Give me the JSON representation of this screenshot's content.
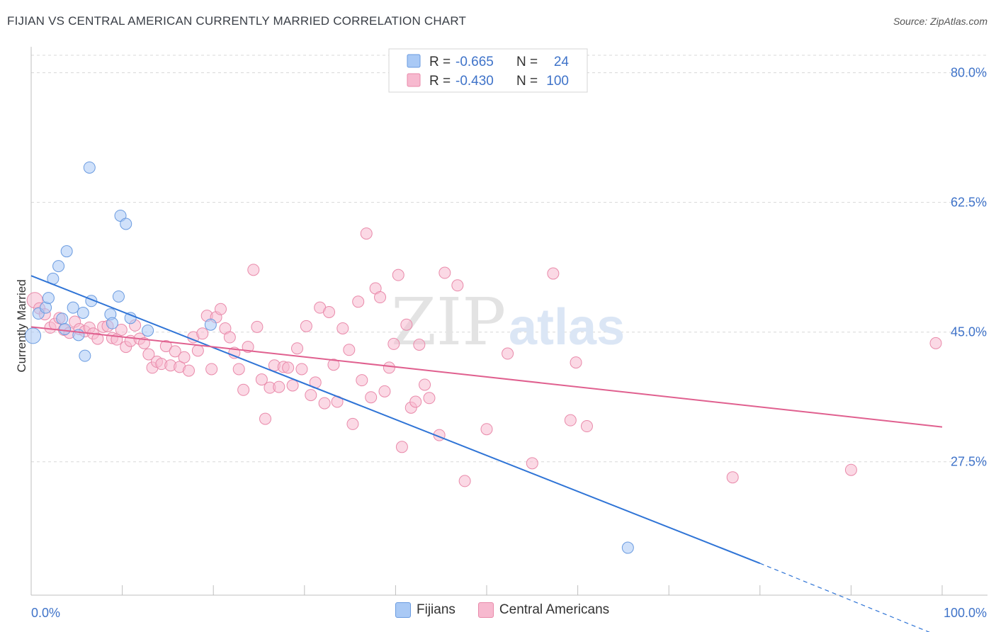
{
  "header": {
    "title": "FIJIAN VS CENTRAL AMERICAN CURRENTLY MARRIED CORRELATION CHART",
    "source": "Source: ZipAtlas.com"
  },
  "watermark": {
    "zip": "ZIP",
    "atlas": "atlas"
  },
  "colors": {
    "blue_fill": "#a9c9f5",
    "blue_stroke": "#6a9be0",
    "blue_line": "#2f74d6",
    "pink_fill": "#f7b9cf",
    "pink_stroke": "#e98aaa",
    "pink_line": "#e0608f",
    "axis_text": "#3f73c9",
    "grid": "#d8d8d8"
  },
  "legend_top": {
    "rows": [
      {
        "series": "Fijians",
        "r_label": "R =",
        "r_value": "-0.665",
        "n_label": "N =",
        "n_value": "24"
      },
      {
        "series": "Central Americans",
        "r_label": "R =",
        "r_value": "-0.430",
        "n_label": "N =",
        "n_value": "100"
      }
    ]
  },
  "legend_bottom": {
    "items": [
      "Fijians",
      "Central Americans"
    ]
  },
  "chart_data": {
    "type": "scatter",
    "title": "FIJIAN VS CENTRAL AMERICAN CURRENTLY MARRIED CORRELATION CHART",
    "xlabel": "",
    "ylabel": "Currently Married",
    "xlim": [
      0,
      100
    ],
    "ylim": [
      9.5,
      83.5
    ],
    "x_tick_labels": {
      "left": "0.0%",
      "right": "100.0%"
    },
    "y_ticks": [
      {
        "value": 80.0,
        "label": "80.0%"
      },
      {
        "value": 62.5,
        "label": "62.5%"
      },
      {
        "value": 45.0,
        "label": "45.0%"
      },
      {
        "value": 27.5,
        "label": "27.5%"
      }
    ],
    "series": [
      {
        "name": "Fijians",
        "color": "blue",
        "points": [
          [
            0.2,
            44.5
          ],
          [
            0.8,
            47.5
          ],
          [
            1.6,
            48.3
          ],
          [
            1.9,
            49.6
          ],
          [
            2.4,
            52.2
          ],
          [
            3.0,
            53.9
          ],
          [
            3.4,
            46.8
          ],
          [
            3.7,
            45.4
          ],
          [
            3.9,
            55.9
          ],
          [
            4.6,
            48.3
          ],
          [
            5.2,
            44.6
          ],
          [
            5.7,
            47.6
          ],
          [
            5.9,
            41.8
          ],
          [
            6.4,
            67.2
          ],
          [
            6.6,
            49.2
          ],
          [
            8.7,
            47.4
          ],
          [
            8.9,
            46.2
          ],
          [
            9.6,
            49.8
          ],
          [
            9.8,
            60.7
          ],
          [
            10.4,
            59.6
          ],
          [
            10.9,
            46.9
          ],
          [
            12.8,
            45.2
          ],
          [
            19.7,
            46.0
          ],
          [
            65.5,
            15.9
          ]
        ],
        "trend": {
          "x0": 0,
          "y0": 52.6,
          "x1": 80,
          "y1": 13.8,
          "dash_x1": 100,
          "dash_y1": 3.8
        }
      },
      {
        "name": "Central Americans",
        "color": "pink",
        "points": [
          [
            0.4,
            49.3
          ],
          [
            0.9,
            48.2
          ],
          [
            1.5,
            47.4
          ],
          [
            2.1,
            45.6
          ],
          [
            2.6,
            46.1
          ],
          [
            3.1,
            46.9
          ],
          [
            3.6,
            45.3
          ],
          [
            4.2,
            44.9
          ],
          [
            4.8,
            46.4
          ],
          [
            5.3,
            45.4
          ],
          [
            5.9,
            45.1
          ],
          [
            6.4,
            45.6
          ],
          [
            6.8,
            44.8
          ],
          [
            7.3,
            44.1
          ],
          [
            7.9,
            45.7
          ],
          [
            8.4,
            45.8
          ],
          [
            8.9,
            44.2
          ],
          [
            9.4,
            44.0
          ],
          [
            9.9,
            45.3
          ],
          [
            10.4,
            43.0
          ],
          [
            10.9,
            43.8
          ],
          [
            11.4,
            45.9
          ],
          [
            11.9,
            44.1
          ],
          [
            12.4,
            43.5
          ],
          [
            12.9,
            42.0
          ],
          [
            13.3,
            40.2
          ],
          [
            13.8,
            41.0
          ],
          [
            14.3,
            40.7
          ],
          [
            14.8,
            43.1
          ],
          [
            15.3,
            40.5
          ],
          [
            15.8,
            42.4
          ],
          [
            16.3,
            40.3
          ],
          [
            16.8,
            41.6
          ],
          [
            17.3,
            39.8
          ],
          [
            17.8,
            44.3
          ],
          [
            18.3,
            42.5
          ],
          [
            18.8,
            44.8
          ],
          [
            19.3,
            47.2
          ],
          [
            19.8,
            40.0
          ],
          [
            20.3,
            47.0
          ],
          [
            20.8,
            48.1
          ],
          [
            21.3,
            45.5
          ],
          [
            21.8,
            44.3
          ],
          [
            22.3,
            42.2
          ],
          [
            22.8,
            40.0
          ],
          [
            23.3,
            37.2
          ],
          [
            23.8,
            43.0
          ],
          [
            24.4,
            53.4
          ],
          [
            24.8,
            45.7
          ],
          [
            25.3,
            38.6
          ],
          [
            25.7,
            33.3
          ],
          [
            26.2,
            37.5
          ],
          [
            26.7,
            40.5
          ],
          [
            27.2,
            37.6
          ],
          [
            27.7,
            40.3
          ],
          [
            28.2,
            40.2
          ],
          [
            28.7,
            37.8
          ],
          [
            29.2,
            42.8
          ],
          [
            29.7,
            40.0
          ],
          [
            30.2,
            45.8
          ],
          [
            30.7,
            36.5
          ],
          [
            31.2,
            38.2
          ],
          [
            31.7,
            48.3
          ],
          [
            32.2,
            35.4
          ],
          [
            32.7,
            47.7
          ],
          [
            33.2,
            40.6
          ],
          [
            33.6,
            35.6
          ],
          [
            34.2,
            45.5
          ],
          [
            34.9,
            42.6
          ],
          [
            35.3,
            32.6
          ],
          [
            35.9,
            49.1
          ],
          [
            36.3,
            38.5
          ],
          [
            36.8,
            58.3
          ],
          [
            37.3,
            36.2
          ],
          [
            37.8,
            50.9
          ],
          [
            38.3,
            49.7
          ],
          [
            38.8,
            37.0
          ],
          [
            39.3,
            40.2
          ],
          [
            39.8,
            43.4
          ],
          [
            40.3,
            52.7
          ],
          [
            40.7,
            29.5
          ],
          [
            41.2,
            46.0
          ],
          [
            41.7,
            34.8
          ],
          [
            42.2,
            35.6
          ],
          [
            42.6,
            43.3
          ],
          [
            43.2,
            37.9
          ],
          [
            43.7,
            36.1
          ],
          [
            44.8,
            31.1
          ],
          [
            45.4,
            53.0
          ],
          [
            46.8,
            51.3
          ],
          [
            47.6,
            24.9
          ],
          [
            50.0,
            31.9
          ],
          [
            52.3,
            42.1
          ],
          [
            55.0,
            27.3
          ],
          [
            57.3,
            52.9
          ],
          [
            59.2,
            33.1
          ],
          [
            59.8,
            40.9
          ],
          [
            61.0,
            32.3
          ],
          [
            77.0,
            25.4
          ],
          [
            90.0,
            26.4
          ],
          [
            99.3,
            43.5
          ]
        ],
        "trend": {
          "x0": 0,
          "y0": 45.7,
          "x1": 100,
          "y1": 32.2
        }
      }
    ]
  }
}
